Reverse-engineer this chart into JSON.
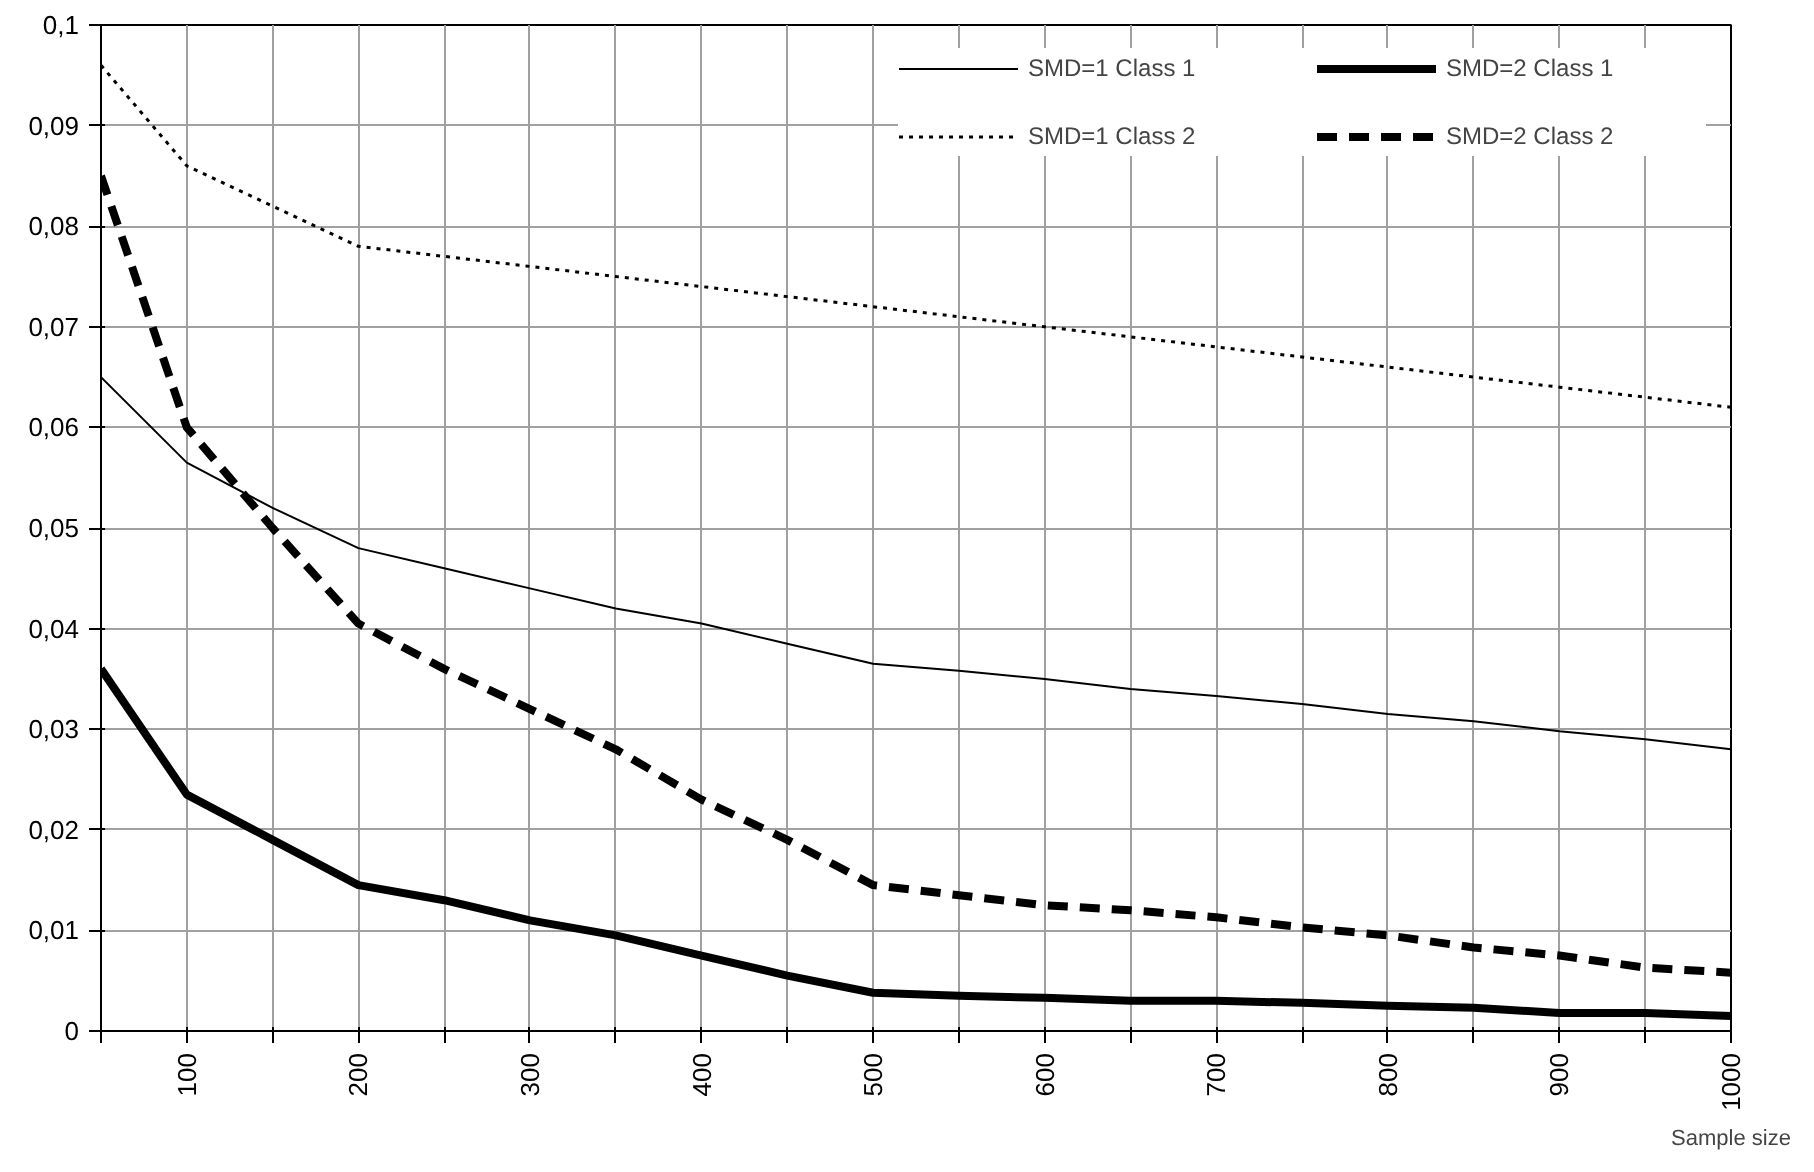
{
  "chart_data": {
    "type": "line",
    "xlabel": "Sample size",
    "x": [
      50,
      100,
      150,
      200,
      250,
      300,
      350,
      400,
      450,
      500,
      550,
      600,
      650,
      700,
      750,
      800,
      850,
      900,
      950,
      1000
    ],
    "series": [
      {
        "name": "SMD=1 Class 1",
        "color": "#000000",
        "line_style": "solid",
        "values": [
          0.065,
          0.0565,
          0.052,
          0.048,
          0.046,
          0.044,
          0.042,
          0.0405,
          0.0385,
          0.0365,
          0.0358,
          0.035,
          0.034,
          0.0333,
          0.0325,
          0.0315,
          0.0308,
          0.0298,
          0.029,
          0.028
        ]
      },
      {
        "name": "SMD=1 Class 2",
        "color": "#000000",
        "line_style": "dotted",
        "values": [
          0.096,
          0.086,
          0.082,
          0.078,
          0.077,
          0.076,
          0.075,
          0.074,
          0.073,
          0.072,
          0.071,
          0.07,
          0.069,
          0.068,
          0.067,
          0.066,
          0.065,
          0.064,
          0.063,
          0.062
        ]
      },
      {
        "name": "SMD=2 Class 1",
        "color": "#000000",
        "line_style": "solid",
        "values": [
          0.036,
          0.0235,
          0.019,
          0.0145,
          0.013,
          0.011,
          0.0095,
          0.0075,
          0.0055,
          0.0038,
          0.0035,
          0.0033,
          0.003,
          0.003,
          0.0028,
          0.0025,
          0.0023,
          0.0018,
          0.0018,
          0.0015
        ]
      },
      {
        "name": "SMD=2 Class 2",
        "color": "#000000",
        "line_style": "dashed",
        "values": [
          0.085,
          0.06,
          0.05,
          0.0405,
          0.036,
          0.032,
          0.028,
          0.023,
          0.019,
          0.0145,
          0.0135,
          0.0125,
          0.012,
          0.0113,
          0.0103,
          0.0095,
          0.0083,
          0.0075,
          0.0063,
          0.0058
        ]
      }
    ],
    "xlim": [
      50,
      1000
    ],
    "xticks": [
      {
        "value": 50,
        "label": null
      },
      100,
      {
        "value": 150,
        "label": null
      },
      200,
      {
        "value": 250,
        "label": null
      },
      300,
      {
        "value": 350,
        "label": null
      },
      400,
      {
        "value": 450,
        "label": null
      },
      500,
      {
        "value": 550,
        "label": null
      },
      600,
      {
        "value": 650,
        "label": null
      },
      700,
      {
        "value": 750,
        "label": null
      },
      800,
      {
        "value": 850,
        "label": null
      },
      900,
      {
        "value": 950,
        "label": null
      },
      1000
    ],
    "ylim": [
      0,
      0.1
    ],
    "yticks": [
      0,
      {
        "value": 0.01,
        "label": "0,01"
      },
      {
        "value": 0.02,
        "label": "0,02"
      },
      {
        "value": 0.03,
        "label": "0,03"
      },
      {
        "value": 0.04,
        "label": "0,04"
      },
      {
        "value": 0.05,
        "label": "0,05"
      },
      {
        "value": 0.06,
        "label": "0,06"
      },
      {
        "value": 0.07,
        "label": "0,07"
      },
      {
        "value": 0.08,
        "label": "0,08"
      },
      {
        "value": 0.09,
        "label": "0,09"
      },
      {
        "value": 0.1,
        "label": "0,1"
      }
    ],
    "grid": true,
    "legend": "top right",
    "marker": "none"
  }
}
